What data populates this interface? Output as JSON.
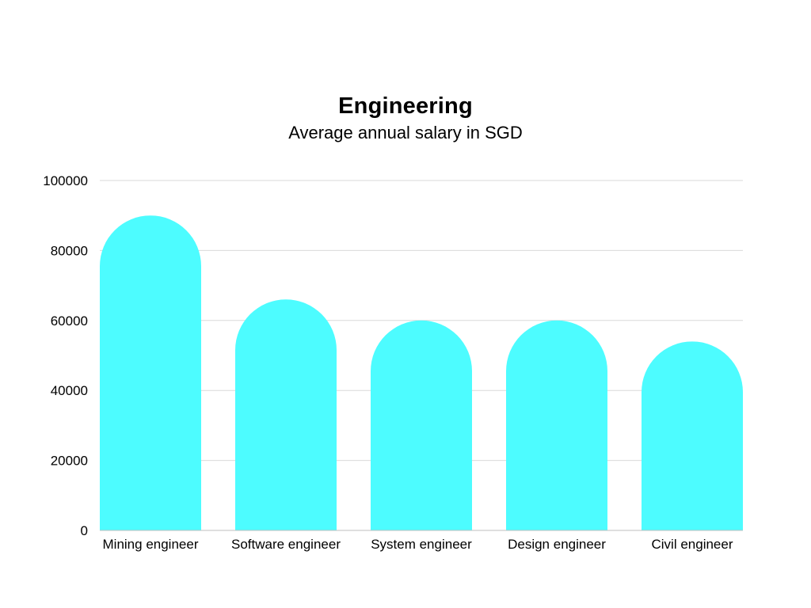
{
  "chart_data": {
    "type": "bar",
    "title": "Engineering",
    "subtitle": "Average annual salary in SGD",
    "categories": [
      "Mining engineer",
      "Software engineer",
      "System engineer",
      "Design engineer",
      "Civil engineer"
    ],
    "values": [
      90000,
      66000,
      60000,
      60000,
      54000
    ],
    "ylim": [
      0,
      100000
    ],
    "yticks": [
      "0",
      "20000",
      "40000",
      "60000",
      "80000",
      "100000"
    ],
    "grid": true,
    "legend": "none",
    "bar_color": "#4dfcff",
    "grid_color": "#d9d9d9",
    "axis_color": "#bfbfbf"
  }
}
